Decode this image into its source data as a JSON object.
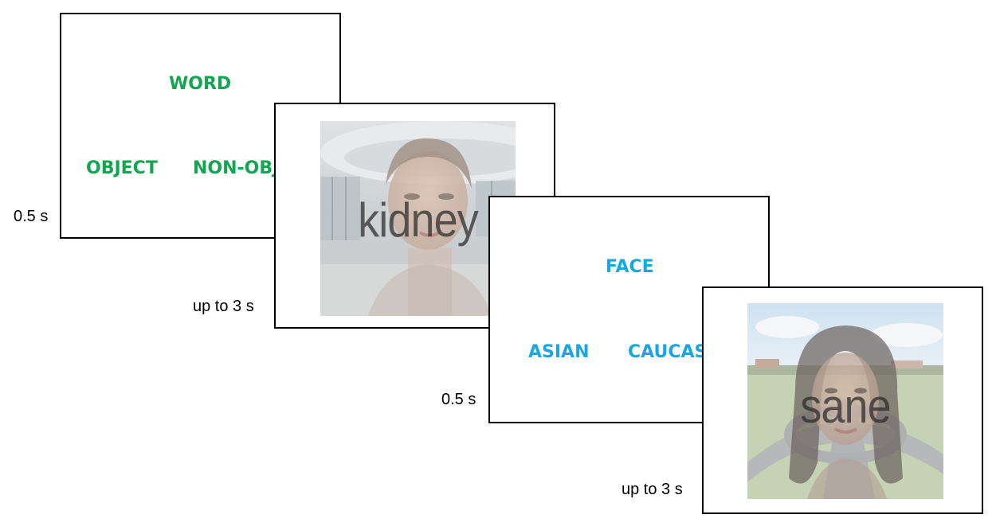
{
  "slide1": {
    "task": "WORD",
    "left_option": "OBJECT",
    "right_option": "NON-OBJECT",
    "duration": "0.5 s"
  },
  "slide2": {
    "word": "kidney",
    "duration": "up to 3 s",
    "scene": "office interior",
    "overlay": "face"
  },
  "slide3": {
    "task": "FACE",
    "left_option": "ASIAN",
    "right_option": "CAUCASIAN",
    "duration": "0.5 s"
  },
  "slide4": {
    "word": "sane",
    "duration": "up to 3 s",
    "scene": "roundabout road",
    "overlay": "face"
  },
  "colors": {
    "word_task": "#12a650",
    "face_task": "#1aa7e0",
    "border": "#000000"
  }
}
